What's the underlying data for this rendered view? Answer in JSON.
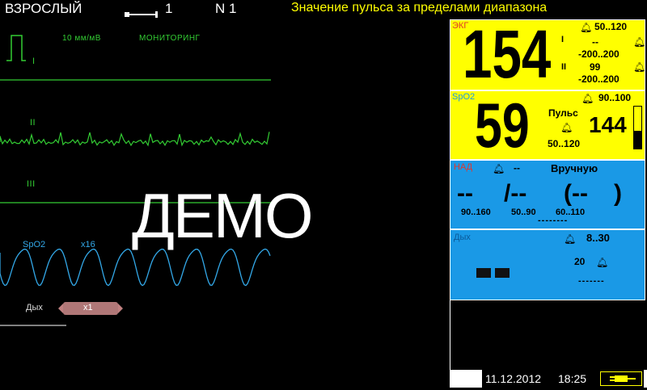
{
  "header": {
    "patient_type": "ВЗРОСЛЫЙ",
    "lead_value": "1",
    "bed": "N 1",
    "alarm_message": "Значение пульса за пределами диапазона"
  },
  "waveforms": {
    "gain": "10 мм/мВ",
    "mode": "МОНИТОРИНГ",
    "lead_i": "I",
    "lead_ii": "II",
    "lead_iii": "III",
    "spo2_label": "SpO2",
    "spo2_gain": "x16",
    "resp_label": "Дых",
    "resp_gain": "x1"
  },
  "demo_text": "ДЕМО",
  "ecg_panel": {
    "label": "ЭКГ",
    "hr_value": "154",
    "hr_limits": "50..120",
    "lead_i": "I",
    "lead_ii": "II",
    "st_i_value": "--",
    "st_i_limits": "-200..200",
    "st_ii_value": "99",
    "st_ii_limits": "-200..200"
  },
  "spo2_panel": {
    "label": "SpO2",
    "value": "59",
    "limits": "90..100",
    "pulse_label": "Пульс",
    "pulse_value": "144",
    "pulse_limits": "50..120"
  },
  "nibp_panel": {
    "label": "НАД",
    "status": "--",
    "mode": "Вручную",
    "systolic": "--",
    "diastolic": "/--",
    "mean": "(--",
    "mean_close": ")",
    "sys_limits": "90..160",
    "dia_limits": "50..90",
    "mean_limits": "60..110",
    "time": "--------"
  },
  "resp_panel": {
    "label": "Дых",
    "limits": "8..30",
    "apnea_value": "20",
    "dashes": "-------"
  },
  "status_bar": {
    "date": "11.12.2012",
    "time": "18:25"
  },
  "colors": {
    "ecg_wave": "#33cc33",
    "spo2_wave": "#33a8e8",
    "alarm_text": "#ffff00",
    "yellow_panel": "#ffff00",
    "blue_panel": "#1a99e6"
  }
}
